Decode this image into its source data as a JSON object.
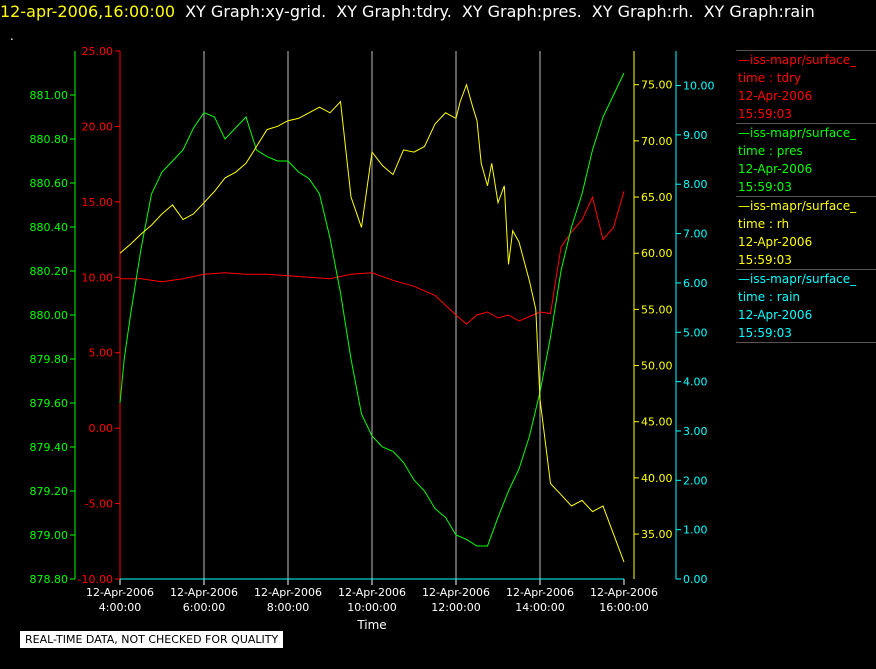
{
  "header": {
    "timestamp": "12-apr-2006,16:00:00",
    "graphs": [
      "XY Graph:xy-grid.",
      "XY Graph:tdry.",
      "XY Graph:pres.",
      "XY Graph:rh.",
      "XY Graph:rain"
    ],
    "dot": "."
  },
  "notice": "REAL-TIME DATA, NOT CHECKED FOR QUALITY",
  "colors": {
    "tdry": "#ff0000",
    "pres": "#00ff00",
    "rh": "#ffff00",
    "rain": "#00ffff",
    "grid": "#bbbbbb"
  },
  "legend": [
    {
      "name": "—iss-mapr/surface_",
      "var": "time : tdry",
      "date": "12-Apr-2006",
      "time": "15:59:03",
      "color": "#ff0000"
    },
    {
      "name": "—iss-mapr/surface_",
      "var": "time : pres",
      "date": "12-Apr-2006",
      "time": "15:59:03",
      "color": "#00ff00"
    },
    {
      "name": "—iss-mapr/surface_",
      "var": "time : rh",
      "date": "12-Apr-2006",
      "time": "15:59:03",
      "color": "#ffff00"
    },
    {
      "name": "—iss-mapr/surface_",
      "var": "time : rain",
      "date": "12-Apr-2006",
      "time": "15:59:03",
      "color": "#00ffff"
    }
  ],
  "chart_data": {
    "type": "line",
    "xlabel": "Time",
    "xlim": [
      4,
      16
    ],
    "x_ticks": [
      {
        "date": "12-Apr-2006",
        "time": "4:00:00"
      },
      {
        "date": "12-Apr-2006",
        "time": "6:00:00"
      },
      {
        "date": "12-Apr-2006",
        "time": "8:00:00"
      },
      {
        "date": "12-Apr-2006",
        "time": "10:00:00"
      },
      {
        "date": "12-Apr-2006",
        "time": "12:00:00"
      },
      {
        "date": "12-Apr-2006",
        "time": "14:00:00"
      },
      {
        "date": "12-Apr-2006",
        "time": "16:00:00"
      }
    ],
    "axes": {
      "pres": {
        "ylim": [
          878.8,
          881.2
        ],
        "ticks": [
          "878.80",
          "879.00",
          "879.20",
          "879.40",
          "879.60",
          "879.80",
          "880.00",
          "880.20",
          "880.40",
          "880.60",
          "880.80",
          "881.00"
        ]
      },
      "tdry": {
        "ylim": [
          -10,
          25
        ],
        "ticks": [
          "-10.00",
          "-5.00",
          "0.00",
          "5.00",
          "10.00",
          "15.00",
          "20.00",
          "25.00"
        ]
      },
      "rh": {
        "ylim": [
          31,
          78
        ],
        "ticks": [
          "35.00",
          "40.00",
          "45.00",
          "50.00",
          "55.00",
          "60.00",
          "65.00",
          "70.00",
          "75.00"
        ]
      },
      "rain": {
        "ylim": [
          0,
          10.7
        ],
        "ticks": [
          "0.00",
          "1.00",
          "2.00",
          "3.00",
          "4.00",
          "5.00",
          "6.00",
          "7.00",
          "8.00",
          "9.00",
          "10.00"
        ]
      }
    },
    "grid": true,
    "series": [
      {
        "name": "time : tdry",
        "axis": "tdry",
        "x": [
          4.0,
          4.5,
          5.0,
          5.5,
          6.0,
          6.5,
          7.0,
          7.5,
          8.0,
          8.5,
          9.0,
          9.5,
          10.0,
          10.5,
          11.0,
          11.5,
          12.0,
          12.25,
          12.5,
          12.75,
          13.0,
          13.25,
          13.5,
          13.75,
          14.0,
          14.25,
          14.5,
          14.75,
          15.0,
          15.25,
          15.5,
          15.75,
          16.0
        ],
        "y": [
          9.9,
          9.9,
          9.7,
          9.9,
          10.2,
          10.3,
          10.2,
          10.2,
          10.1,
          10.0,
          9.9,
          10.2,
          10.3,
          9.8,
          9.4,
          8.8,
          7.5,
          6.9,
          7.5,
          7.7,
          7.3,
          7.5,
          7.1,
          7.4,
          7.7,
          7.6,
          12.0,
          13.0,
          13.8,
          15.3,
          12.5,
          13.3,
          15.7
        ]
      },
      {
        "name": "time : pres",
        "axis": "pres",
        "x": [
          4.0,
          4.1,
          4.25,
          4.5,
          4.75,
          5.0,
          5.25,
          5.5,
          5.75,
          6.0,
          6.25,
          6.5,
          6.75,
          7.0,
          7.25,
          7.5,
          7.75,
          8.0,
          8.25,
          8.5,
          8.75,
          9.0,
          9.25,
          9.5,
          9.75,
          10.0,
          10.25,
          10.5,
          10.75,
          11.0,
          11.25,
          11.5,
          11.75,
          12.0,
          12.25,
          12.5,
          12.75,
          13.0,
          13.25,
          13.5,
          13.75,
          14.0,
          14.25,
          14.5,
          14.75,
          15.0,
          15.25,
          15.5,
          15.75,
          16.0
        ],
        "y": [
          879.6,
          879.8,
          880.0,
          880.3,
          880.55,
          880.65,
          880.7,
          880.75,
          880.85,
          880.92,
          880.9,
          880.8,
          880.85,
          880.9,
          880.75,
          880.72,
          880.7,
          880.7,
          880.65,
          880.62,
          880.55,
          880.35,
          880.1,
          879.8,
          879.55,
          879.45,
          879.4,
          879.38,
          879.33,
          879.25,
          879.2,
          879.12,
          879.08,
          879.0,
          878.98,
          878.95,
          878.95,
          879.08,
          879.2,
          879.3,
          879.45,
          879.65,
          879.9,
          880.2,
          880.4,
          880.55,
          880.75,
          880.9,
          881.0,
          881.1
        ]
      },
      {
        "name": "time : rh",
        "axis": "rh",
        "x": [
          4.0,
          4.25,
          4.5,
          4.75,
          5.0,
          5.25,
          5.5,
          5.75,
          6.0,
          6.25,
          6.5,
          6.75,
          7.0,
          7.25,
          7.5,
          7.75,
          8.0,
          8.25,
          8.5,
          8.75,
          9.0,
          9.25,
          9.5,
          9.75,
          10.0,
          10.25,
          10.5,
          10.75,
          11.0,
          11.25,
          11.5,
          11.75,
          12.0,
          12.1,
          12.25,
          12.4,
          12.5,
          12.6,
          12.75,
          12.85,
          13.0,
          13.15,
          13.25,
          13.35,
          13.5,
          13.75,
          13.9,
          14.0,
          14.1,
          14.25,
          14.5,
          14.75,
          15.0,
          15.25,
          15.5,
          15.75,
          16.0
        ],
        "y": [
          60.0,
          60.8,
          61.7,
          62.5,
          63.5,
          64.3,
          63.0,
          63.5,
          64.5,
          65.5,
          66.7,
          67.2,
          68.0,
          69.5,
          71.0,
          71.3,
          71.8,
          72.0,
          72.5,
          73.0,
          72.5,
          73.5,
          65.0,
          62.3,
          69.0,
          67.8,
          67.0,
          69.2,
          69.0,
          69.5,
          71.5,
          72.5,
          72.0,
          73.5,
          75.0,
          73.0,
          71.8,
          68.0,
          66.0,
          68.0,
          64.5,
          66.0,
          59.0,
          62.0,
          61.0,
          57.5,
          55.0,
          47.0,
          44.0,
          39.5,
          38.5,
          37.5,
          38.0,
          37.0,
          37.5,
          35.0,
          32.5
        ]
      },
      {
        "name": "time : rain",
        "axis": "rain",
        "x": [
          4.0,
          16.0
        ],
        "y": [
          0.0,
          0.0
        ]
      }
    ]
  }
}
